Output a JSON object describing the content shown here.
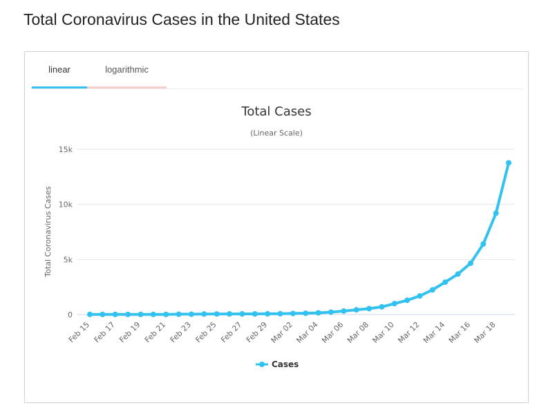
{
  "page": {
    "title": "Total Coronavirus Cases in the United States"
  },
  "tabs": [
    {
      "label": "linear",
      "active": true,
      "color": "#33c2f0"
    },
    {
      "label": "logarithmic",
      "active": false,
      "color": "#f6cfcf"
    }
  ],
  "chart_data": {
    "type": "line",
    "title": "Total Cases",
    "subtitle": "(Linear Scale)",
    "xlabel": "",
    "ylabel": "Total Coronavirus Cases",
    "ylim": [
      0,
      15000
    ],
    "yticks": [
      0,
      5000,
      10000,
      15000
    ],
    "ytick_labels": [
      "0",
      "5k",
      "10k",
      "15k"
    ],
    "grid": true,
    "legend": "bottom-center",
    "x": [
      "Feb 15",
      "Feb 16",
      "Feb 17",
      "Feb 18",
      "Feb 19",
      "Feb 20",
      "Feb 21",
      "Feb 22",
      "Feb 23",
      "Feb 24",
      "Feb 25",
      "Feb 26",
      "Feb 27",
      "Feb 28",
      "Feb 29",
      "Mar 01",
      "Mar 02",
      "Mar 03",
      "Mar 04",
      "Mar 05",
      "Mar 06",
      "Mar 07",
      "Mar 08",
      "Mar 09",
      "Mar 10",
      "Mar 11",
      "Mar 12",
      "Mar 13",
      "Mar 14",
      "Mar 15",
      "Mar 16",
      "Mar 17",
      "Mar 18",
      "Mar 19"
    ],
    "xtick_labels_shown": [
      "Feb 15",
      "Feb 17",
      "Feb 19",
      "Feb 21",
      "Feb 23",
      "Feb 25",
      "Feb 27",
      "Feb 29",
      "Mar 02",
      "Mar 04",
      "Mar 06",
      "Mar 08",
      "Mar 10",
      "Mar 12",
      "Mar 14",
      "Mar 16",
      "Mar 18"
    ],
    "series": [
      {
        "name": "Cases",
        "color": "#33c2f0",
        "values": [
          15,
          15,
          15,
          15,
          15,
          15,
          15,
          35,
          35,
          53,
          57,
          59,
          60,
          62,
          68,
          75,
          100,
          124,
          158,
          221,
          319,
          435,
          541,
          704,
          994,
          1301,
          1697,
          2247,
          2943,
          3680,
          4663,
          6411,
          9197,
          13779
        ]
      }
    ]
  }
}
